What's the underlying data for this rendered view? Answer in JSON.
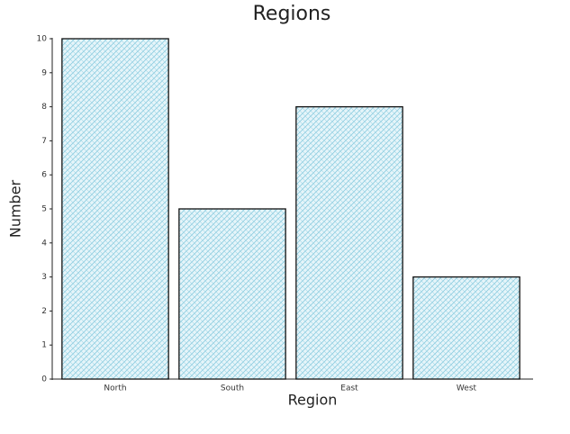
{
  "chart_data": {
    "type": "bar",
    "title": "Regions",
    "x_label": "Region",
    "y_label": "Number",
    "categories": [
      "North",
      "South",
      "East",
      "West"
    ],
    "values": [
      10,
      5,
      8,
      3
    ],
    "color": "#a9dbe9",
    "ylim": [
      0,
      10
    ],
    "yticks": [
      0,
      1,
      2,
      3,
      4,
      5,
      6,
      7,
      8,
      9,
      10
    ],
    "grid": false
  }
}
